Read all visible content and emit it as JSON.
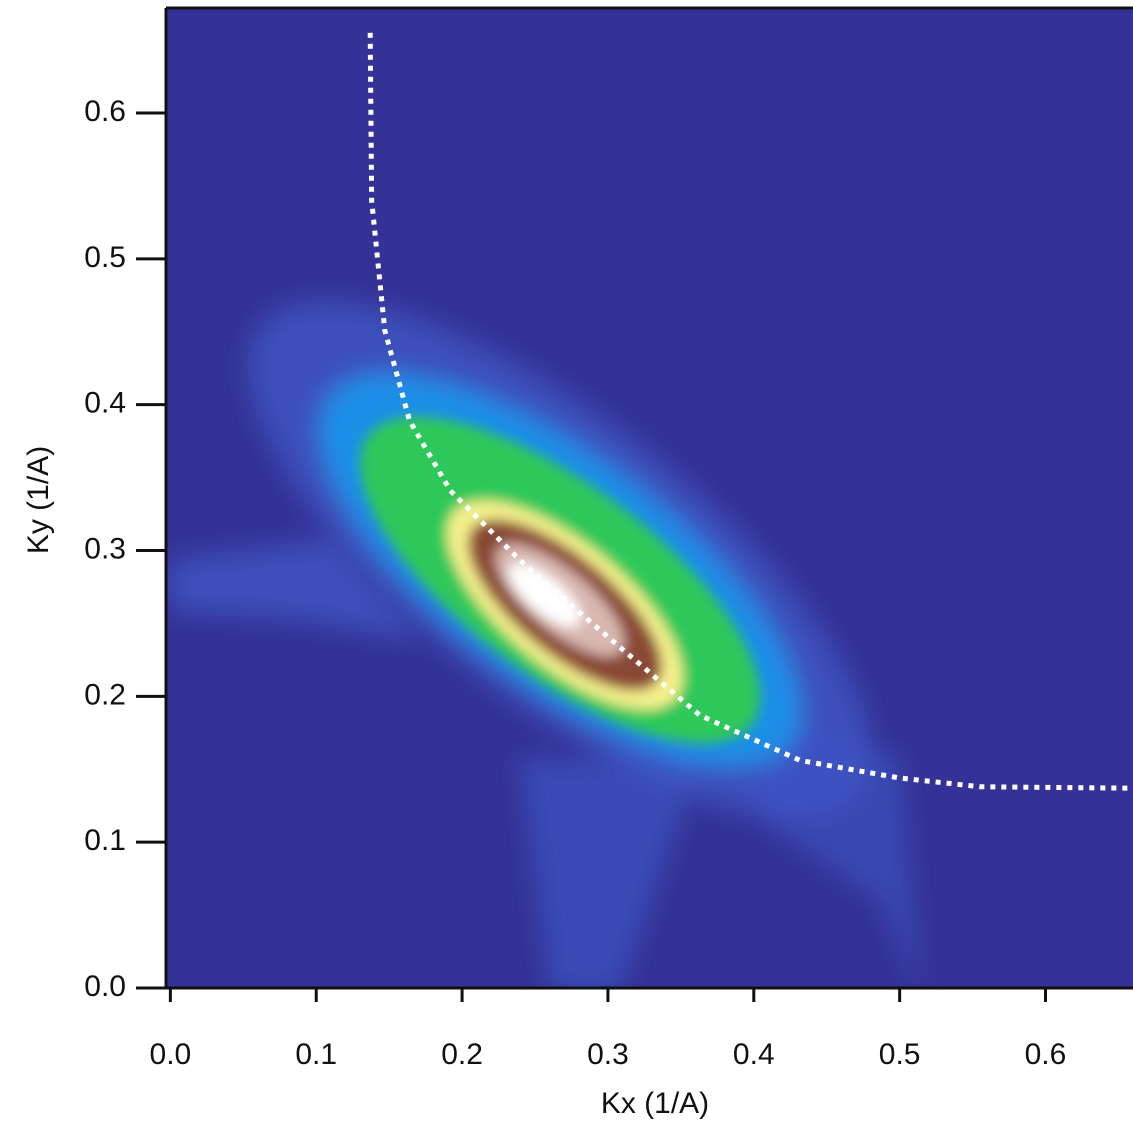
{
  "chart_data": {
    "type": "line",
    "x_label": "Kx (1/A)",
    "y_label": "Ky (1/A)",
    "xlim": [
      -0.003,
      0.66
    ],
    "ylim": [
      0,
      0.672
    ],
    "xticks": [
      {
        "value": 0,
        "label": "0.0"
      },
      0.1,
      0.2,
      0.3,
      0.4,
      0.5,
      0.6
    ],
    "yticks": [
      {
        "value": 0,
        "label": "0.0"
      },
      0.1,
      0.2,
      0.3,
      0.4,
      0.5,
      0.6
    ],
    "background": "#343296",
    "series": [
      {
        "color": "#ffffff",
        "x": [
          0.137,
          0.138,
          0.147,
          0.164,
          0.192,
          0.24,
          0.295,
          0.363,
          0.432,
          0.5,
          0.555,
          0.66
        ],
        "values": [
          0.655,
          0.54,
          0.451,
          0.389,
          0.341,
          0.293,
          0.245,
          0.187,
          0.156,
          0.144,
          0.138,
          0.137
        ]
      }
    ]
  }
}
